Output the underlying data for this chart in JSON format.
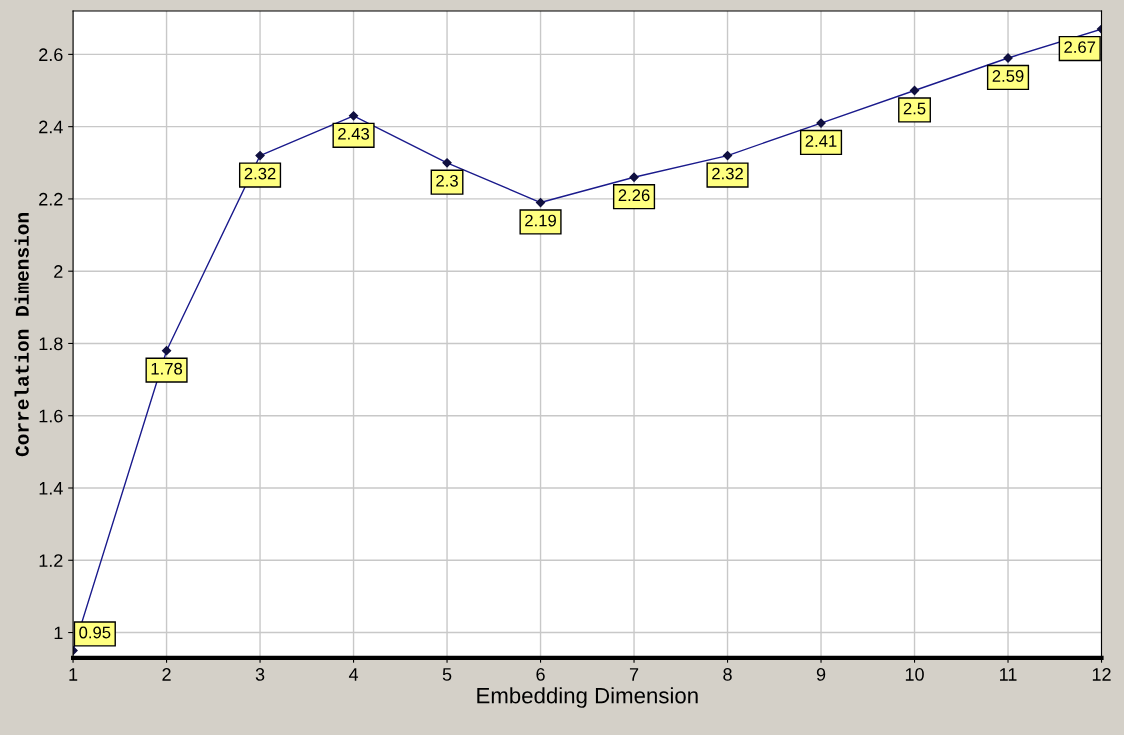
{
  "chart_data": {
    "type": "line",
    "xlabel": "Embedding Dimension",
    "ylabel": "Correlation Dimension",
    "x": [
      1,
      2,
      3,
      4,
      5,
      6,
      7,
      8,
      9,
      10,
      11,
      12
    ],
    "series": [
      {
        "color": "#1a1a8c",
        "values": [
          0.95,
          1.78,
          2.32,
          2.43,
          2.3,
          2.19,
          2.26,
          2.32,
          2.41,
          2.5,
          2.59,
          2.67
        ]
      }
    ],
    "xlim": [
      1,
      12
    ],
    "xticks": [
      1,
      2,
      3,
      4,
      5,
      6,
      7,
      8,
      9,
      10,
      11,
      12
    ],
    "ylim": [
      0.93,
      2.72
    ],
    "yticks": [
      1,
      1.2,
      1.4,
      1.6,
      1.8,
      2,
      2.2,
      2.4,
      2.6
    ],
    "grid": true,
    "marker": "diamond",
    "line_style": "solid",
    "data_labels": true
  }
}
